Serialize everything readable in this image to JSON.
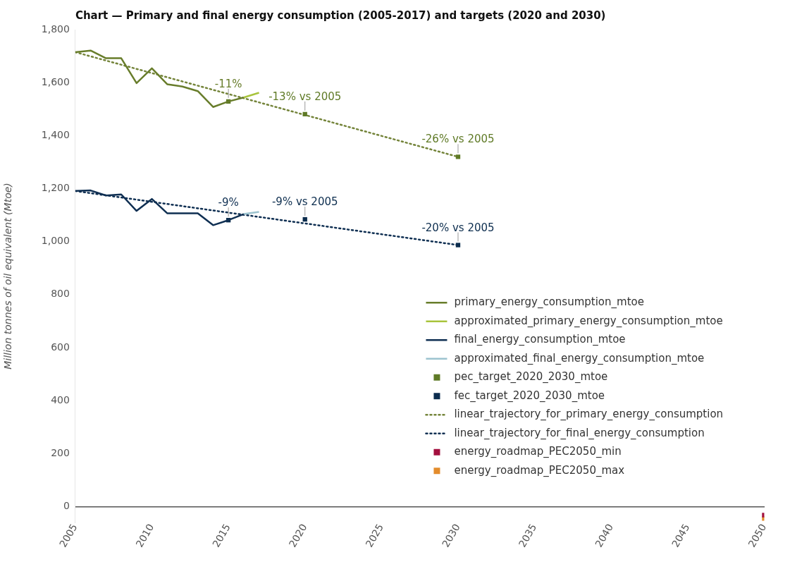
{
  "chart_data": {
    "type": "line",
    "title": "Chart — Primary and final energy consumption (2005-2017) and targets (2020 and 2030)",
    "ylabel": "Million tonnes of oil equivalent (Mtoe)",
    "xlim": [
      2005,
      2050
    ],
    "xticks": [
      2005,
      2010,
      2015,
      2020,
      2025,
      2030,
      2035,
      2040,
      2045,
      2050
    ],
    "ylim": [
      -60,
      1800
    ],
    "yticks": [
      0,
      200,
      400,
      600,
      800,
      {
        "value": 1000,
        "label": "1,000"
      },
      {
        "value": 1200,
        "label": "1,200"
      },
      {
        "value": 1400,
        "label": "1,400"
      },
      {
        "value": 1600,
        "label": "1,600"
      },
      {
        "value": 1800,
        "label": "1,800"
      }
    ],
    "legend": "bottom right",
    "marker": "none",
    "annotations": [
      {
        "text": "-11%",
        "x": 2015,
        "y": 1529
      },
      {
        "text": "-13% vs 2005",
        "x": 2020,
        "y": 1481
      },
      {
        "text": "-26% vs 2005",
        "x": 2030,
        "y": 1320
      },
      {
        "text": "-9%",
        "x": 2015,
        "y": 1081
      },
      {
        "text": "-9% vs 2005",
        "x": 2020,
        "y": 1084
      },
      {
        "text": "-20% vs 2005",
        "x": 2030,
        "y": 987
      }
    ],
    "series": [
      {
        "name": "primary_energy_consumption_mtoe",
        "color": "#687d2b",
        "x": [
          2005,
          2006,
          2007,
          2008,
          2009,
          2010,
          2011,
          2012,
          2013,
          2014,
          2015,
          2016
        ],
        "values": [
          1715,
          1721,
          1692,
          1692,
          1598,
          1654,
          1594,
          1585,
          1568,
          1508,
          1529,
          1544
        ]
      },
      {
        "name": "approximated_primary_energy_consumption_mtoe",
        "type": "line",
        "color": "#a8c43c",
        "x": [
          2016,
          2017
        ],
        "values": [
          1544,
          1562
        ]
      },
      {
        "name": "final_energy_consumption_mtoe",
        "type": "line",
        "color": "#0f2f52",
        "x": [
          2005,
          2006,
          2007,
          2008,
          2009,
          2010,
          2011,
          2012,
          2013,
          2014,
          2015,
          2016
        ],
        "values": [
          1191,
          1193,
          1174,
          1178,
          1116,
          1161,
          1107,
          1107,
          1107,
          1062,
          1081,
          1104
        ]
      },
      {
        "name": "approximated_final_energy_consumption_mtoe",
        "type": "line",
        "color": "#9cc3cf",
        "x": [
          2016,
          2017
        ],
        "values": [
          1104,
          1112
        ]
      },
      {
        "name": "pec_target_2020_2030_mtoe",
        "type": "scatter",
        "marker": "square",
        "color": "#5f7a26",
        "x": [
          2015,
          2020,
          2030
        ],
        "values": [
          1529,
          1481,
          1320
        ]
      },
      {
        "name": "fec_target_2020_2030_mtoe",
        "type": "scatter",
        "marker": "square",
        "color": "#0c2d4e",
        "x": [
          2015,
          2020,
          2030
        ],
        "values": [
          1081,
          1084,
          987
        ]
      },
      {
        "name": "linear_trajectory_for_primary_energy_consumption",
        "type": "line",
        "line_style": "dotted",
        "color": "#74843a",
        "x": [
          2005,
          2030
        ],
        "values": [
          1715,
          1320
        ]
      },
      {
        "name": "linear_trajectory_for_final_energy_consumption",
        "type": "line",
        "line_style": "dotted",
        "color": "#0f2f52",
        "x": [
          2005,
          2030
        ],
        "values": [
          1191,
          987
        ]
      },
      {
        "name": "energy_roadmap_PEC2050_min",
        "type": "scatter",
        "marker": "square",
        "color": "#a3103f",
        "x": [
          2050
        ],
        "values": [
          -32
        ]
      },
      {
        "name": "energy_roadmap_PEC2050_max",
        "type": "scatter",
        "marker": "square",
        "color": "#e38c2c",
        "x": [
          2050
        ],
        "values": [
          -45
        ]
      }
    ]
  }
}
